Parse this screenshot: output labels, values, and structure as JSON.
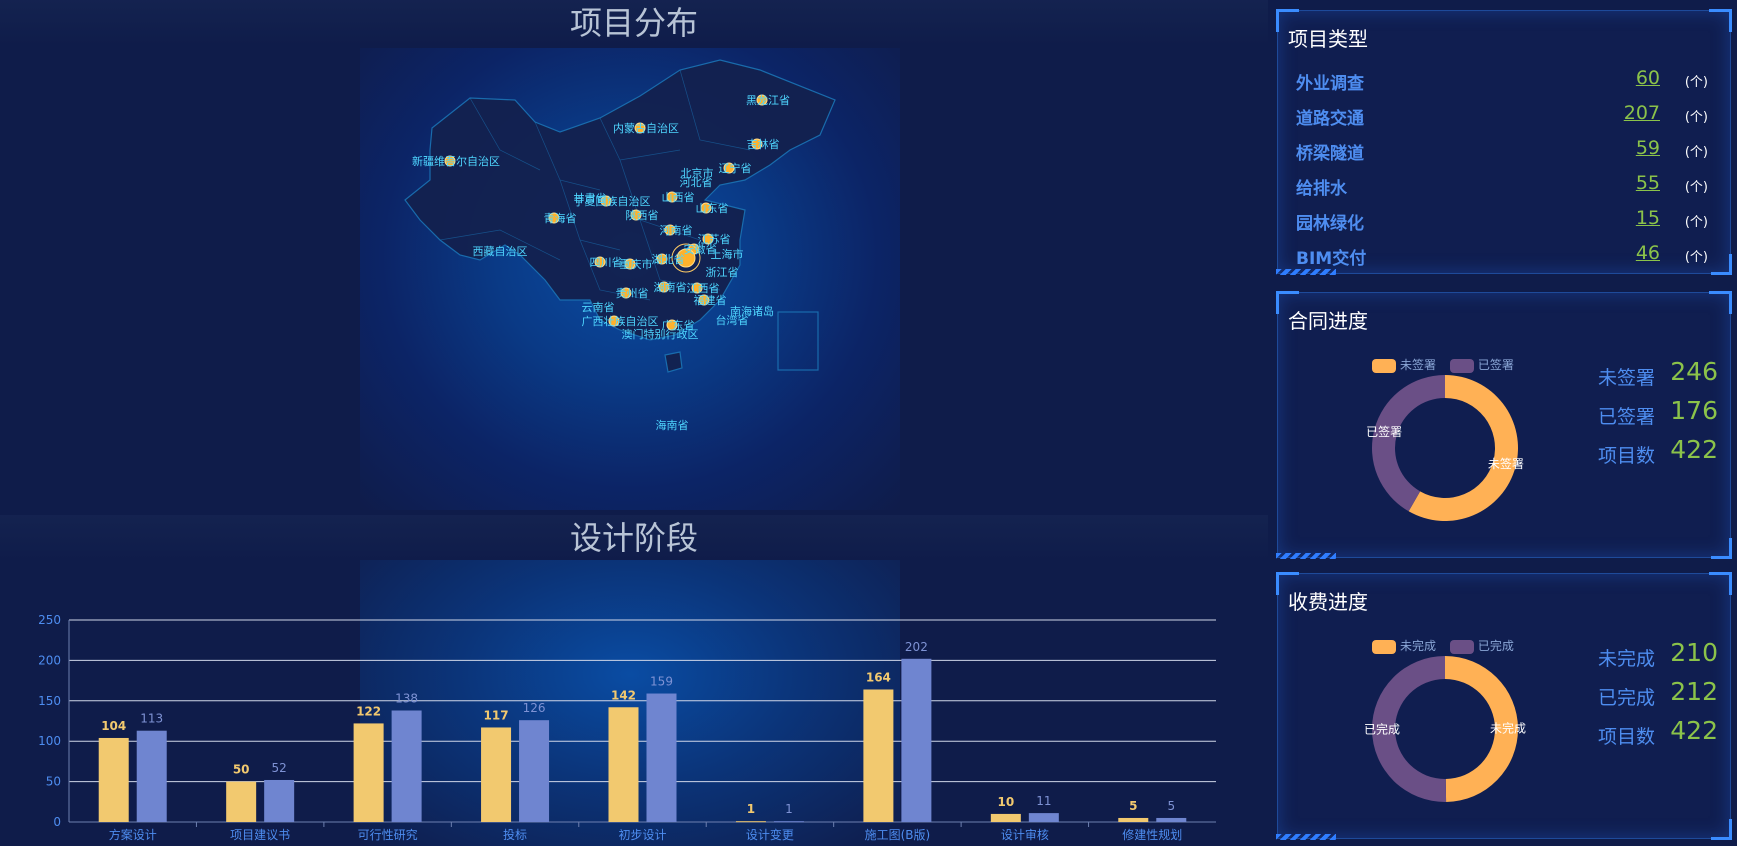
{
  "map_section": {
    "title": "项目分布",
    "provinces": [
      "黑龙江省",
      "内蒙古自治区",
      "吉林省",
      "新疆维吾尔自治区",
      "北京市",
      "辽宁省",
      "河北省",
      "甘肃省",
      "宁夏回族自治区",
      "山西省",
      "山东省",
      "青海省",
      "陕西省",
      "河南省",
      "江苏省",
      "西藏自治区",
      "安徽省",
      "上海市",
      "四川省",
      "重庆市",
      "浙江省",
      "湖北省",
      "贵州省",
      "湖南省",
      "江西省",
      "福建省",
      "云南省",
      "南海诸岛",
      "广西壮族自治区",
      "广东省",
      "台湾省",
      "澳门特别行政区",
      "海南省"
    ]
  },
  "bar_section": {
    "title": "设计阶段",
    "chart_data": {
      "type": "bar",
      "categories": [
        "方案设计",
        "项目建议书",
        "可行性研究",
        "投标",
        "初步设计",
        "设计变更",
        "施工图(B版)",
        "设计审核",
        "修建性规划"
      ],
      "series": [
        {
          "values": [
            104,
            50,
            122,
            117,
            142,
            1,
            164,
            10,
            5
          ],
          "color": "#f2c96f"
        },
        {
          "values": [
            113,
            52,
            138,
            126,
            159,
            1,
            202,
            11,
            5
          ],
          "color": "#6f85d0"
        }
      ],
      "ylim": [
        0,
        250
      ],
      "yticks": [
        0,
        50,
        100,
        150,
        200,
        250
      ],
      "grid": true
    }
  },
  "project_types": {
    "title": "项目类型",
    "items": [
      {
        "name": "外业调查",
        "value": "60",
        "unit": "(个)"
      },
      {
        "name": "道路交通",
        "value": "207",
        "unit": "(个)"
      },
      {
        "name": "桥梁隧道",
        "value": "59",
        "unit": "(个)"
      },
      {
        "name": "给排水",
        "value": "55",
        "unit": "(个)"
      },
      {
        "name": "园林绿化",
        "value": "15",
        "unit": "(个)"
      },
      {
        "name": "BIM交付",
        "value": "46",
        "unit": "(个)"
      }
    ]
  },
  "contract": {
    "title": "合同进度",
    "legend": [
      "未签署",
      "已签署"
    ],
    "chart_data": {
      "type": "pie",
      "labels": [
        "未签署",
        "已签署"
      ],
      "values": [
        246,
        176
      ],
      "colors": [
        "#ffb155",
        "#6a4f86"
      ]
    },
    "stats": [
      {
        "label": "未签署",
        "value": "246"
      },
      {
        "label": "已签署",
        "value": "176"
      },
      {
        "label": "项目数",
        "value": "422"
      }
    ]
  },
  "fee": {
    "title": "收费进度",
    "legend": [
      "未完成",
      "已完成"
    ],
    "chart_data": {
      "type": "pie",
      "labels": [
        "未完成",
        "已完成"
      ],
      "values": [
        210,
        212
      ],
      "colors": [
        "#ffb155",
        "#6a4f86"
      ]
    },
    "stats": [
      {
        "label": "未完成",
        "value": "210"
      },
      {
        "label": "已完成",
        "value": "212"
      },
      {
        "label": "项目数",
        "value": "422"
      }
    ]
  }
}
